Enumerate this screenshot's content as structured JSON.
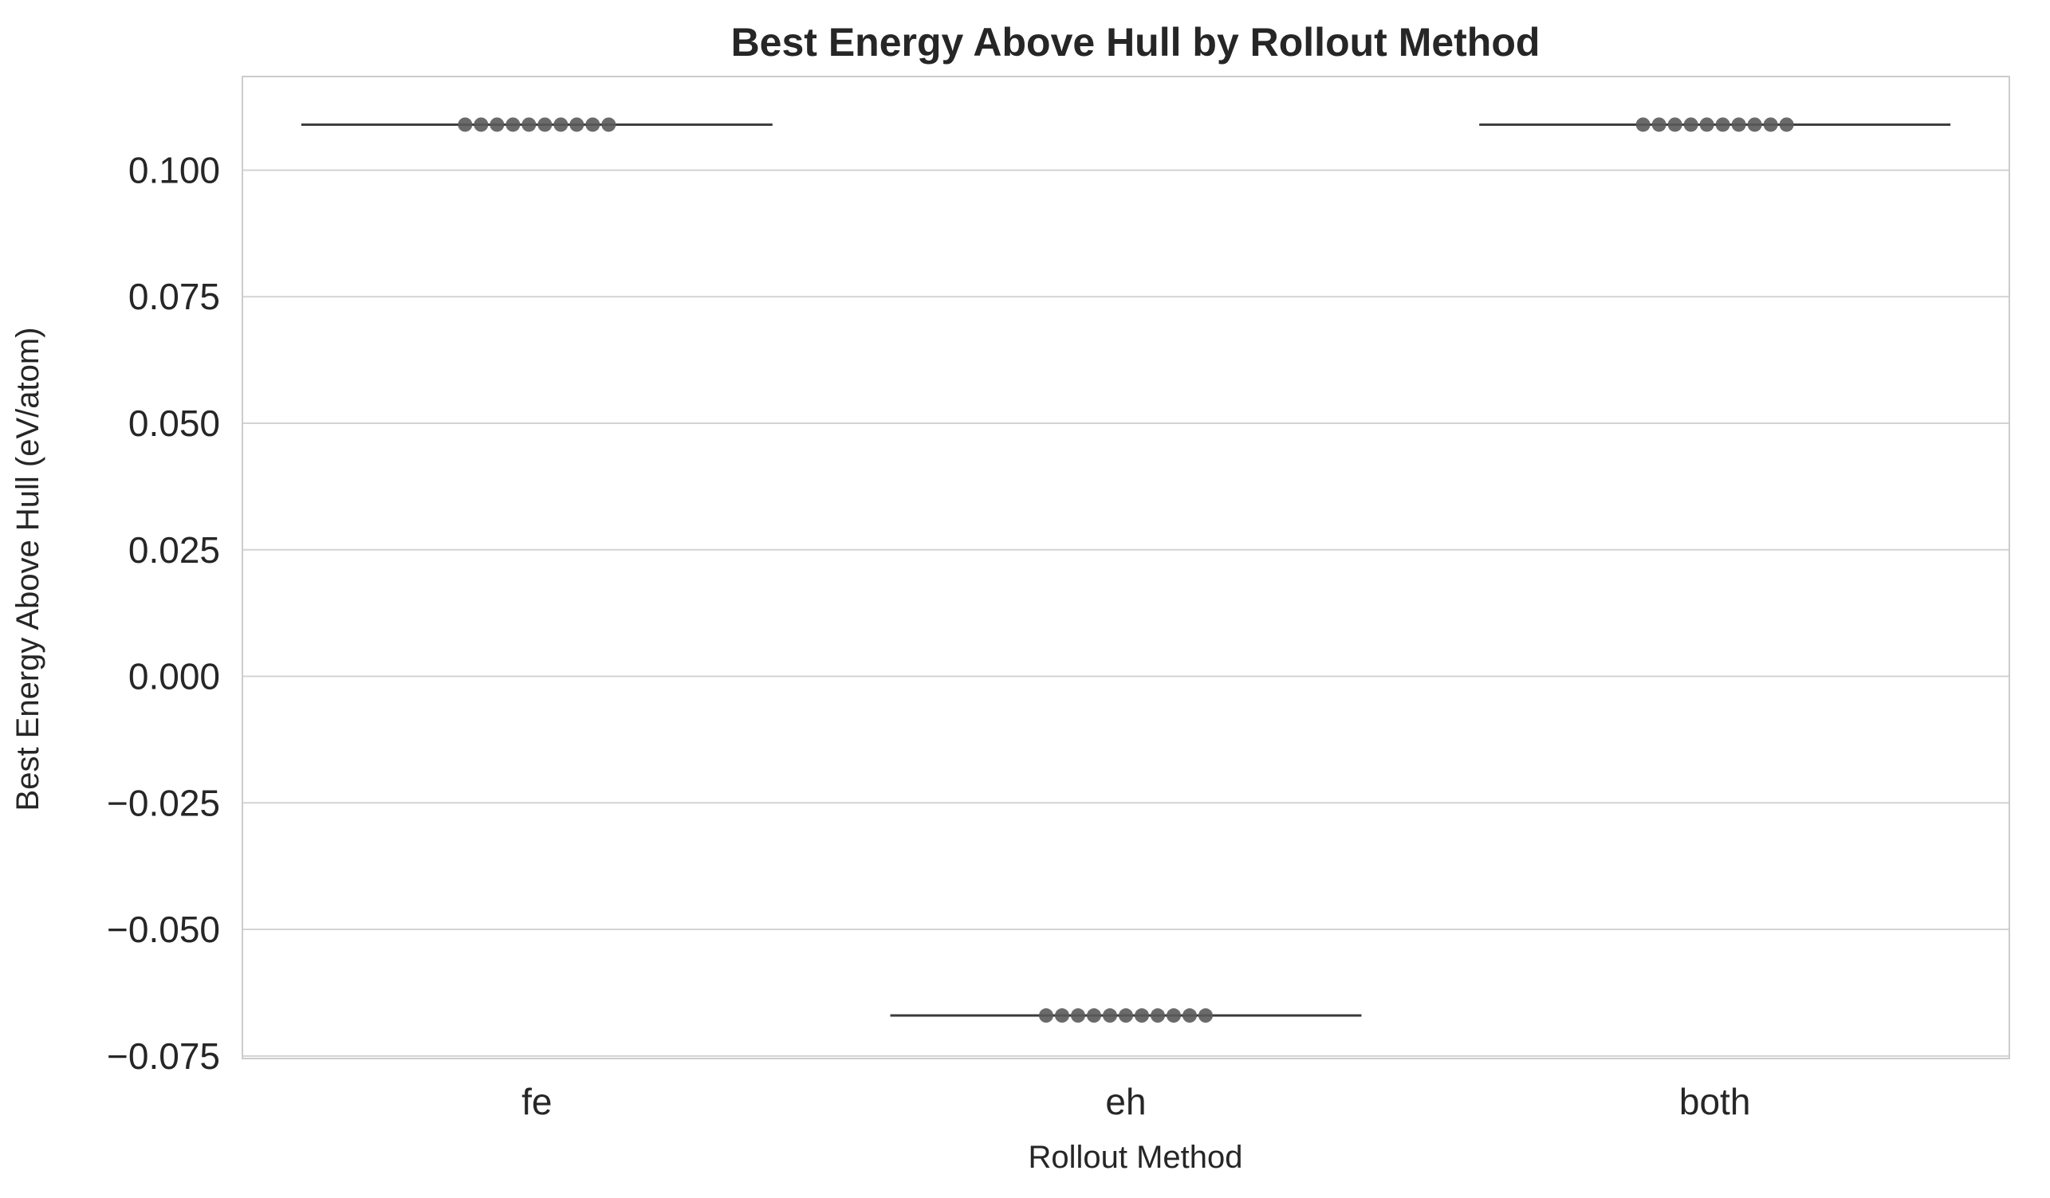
{
  "chart_data": {
    "type": "box",
    "title": "Best Energy Above Hull by Rollout Method",
    "xlabel": "Rollout Method",
    "ylabel": "Best Energy Above Hull (eV/atom)",
    "categories": [
      "fe",
      "eh",
      "both"
    ],
    "ylim": [
      -0.0755,
      0.1185
    ],
    "yticks": [
      0.1,
      0.075,
      0.05,
      0.025,
      0.0,
      -0.025,
      -0.05,
      -0.075
    ],
    "ytick_labels": [
      "0.100",
      "0.075",
      "0.050",
      "0.025",
      "0.000",
      "−0.025",
      "−0.050",
      "−0.075"
    ],
    "grid": "horizontal",
    "series": [
      {
        "category": "fe",
        "values": [
          0.109,
          0.109,
          0.109,
          0.109,
          0.109,
          0.109,
          0.109,
          0.109,
          0.109,
          0.109
        ]
      },
      {
        "category": "eh",
        "values": [
          -0.067,
          -0.067,
          -0.067,
          -0.067,
          -0.067,
          -0.067,
          -0.067,
          -0.067,
          -0.067,
          -0.067,
          -0.067
        ]
      },
      {
        "category": "both",
        "values": [
          0.109,
          0.109,
          0.109,
          0.109,
          0.109,
          0.109,
          0.109,
          0.109,
          0.109,
          0.109
        ]
      }
    ],
    "colors": {
      "grid": "#d3d3d3",
      "frame": "#cccccc",
      "box_line": "#3a3a3a",
      "point": "#5a5a5a"
    }
  }
}
